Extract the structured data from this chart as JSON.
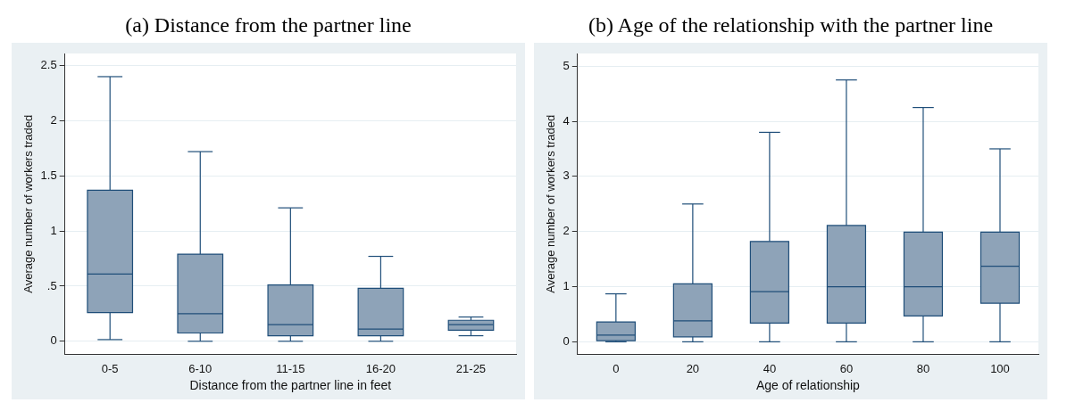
{
  "chart_data": [
    {
      "type": "box",
      "title": "(a) Distance from the partner line",
      "xlabel": "Distance from the partner line in feet",
      "ylabel": "Average number of workers traded",
      "categories": [
        "0-5",
        "6-10",
        "11-15",
        "16-20",
        "21-25"
      ],
      "color": "#8ea3b8",
      "grid": "y",
      "ylim": [
        -0.12,
        2.61
      ],
      "yticks": [
        0,
        {
          "value": 0.5,
          "label": ".5"
        },
        1,
        1.5,
        2,
        2.5
      ],
      "boxes": [
        {
          "low": 0.015,
          "q1": 0.26,
          "median": 0.61,
          "q3": 1.37,
          "high": 2.4
        },
        {
          "low": 0,
          "q1": 0.075,
          "median": 0.25,
          "q3": 0.79,
          "high": 1.72
        },
        {
          "low": 0,
          "q1": 0.05,
          "median": 0.15,
          "q3": 0.51,
          "high": 1.21
        },
        {
          "low": 0,
          "q1": 0.05,
          "median": 0.11,
          "q3": 0.48,
          "high": 0.77
        },
        {
          "low": 0.05,
          "q1": 0.1,
          "median": 0.15,
          "q3": 0.19,
          "high": 0.22
        }
      ]
    },
    {
      "type": "box",
      "title": "(b) Age of the relationship with the partner line",
      "xlabel": "Age of relationship",
      "ylabel": "Average number of workers traded",
      "categories": [
        "0",
        "20",
        "40",
        "60",
        "80",
        "100"
      ],
      "color": "#8ea3b8",
      "grid": "y",
      "ylim": [
        -0.23,
        5.23
      ],
      "yticks": [
        0,
        1,
        2,
        3,
        4,
        5
      ],
      "boxes": [
        {
          "low": 0,
          "q1": 0.02,
          "median": 0.12,
          "q3": 0.36,
          "high": 0.87
        },
        {
          "low": 0,
          "q1": 0.09,
          "median": 0.38,
          "q3": 1.05,
          "high": 2.5
        },
        {
          "low": 0,
          "q1": 0.34,
          "median": 0.91,
          "q3": 1.82,
          "high": 3.8
        },
        {
          "low": 0,
          "q1": 0.34,
          "median": 1,
          "q3": 2.11,
          "high": 4.75
        },
        {
          "low": 0,
          "q1": 0.47,
          "median": 1,
          "q3": 1.99,
          "high": 4.25
        },
        {
          "low": 0,
          "q1": 0.7,
          "median": 1.37,
          "q3": 1.99,
          "high": 3.5
        }
      ]
    }
  ]
}
